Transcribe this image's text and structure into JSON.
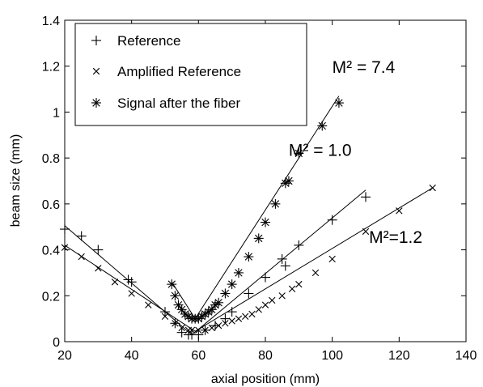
{
  "chart_data": {
    "type": "scatter",
    "title": "",
    "xlabel": "axial position (mm)",
    "ylabel": "beam size (mm)",
    "xlim": [
      20,
      140
    ],
    "ylim": [
      0,
      1.4
    ],
    "xticks": [
      20,
      40,
      60,
      80,
      100,
      120,
      140
    ],
    "yticks": [
      0,
      0.2,
      0.4,
      0.6,
      0.8,
      1,
      1.2,
      1.4
    ],
    "xtick_labels": [
      "20",
      "40",
      "60",
      "80",
      "100",
      "120",
      "140"
    ],
    "ytick_labels": [
      "0",
      "0.2",
      "0.4",
      "0.6",
      "0.8",
      "1",
      "1.2",
      "1.4"
    ],
    "grid": false,
    "legend_position": "top-left",
    "series": [
      {
        "name": "Reference",
        "marker": "plus",
        "points": [
          [
            20,
            0.49
          ],
          [
            25,
            0.46
          ],
          [
            30,
            0.4
          ],
          [
            39,
            0.27
          ],
          [
            40,
            0.26
          ],
          [
            50,
            0.13
          ],
          [
            53,
            0.08
          ],
          [
            55,
            0.04
          ],
          [
            57,
            0.03
          ],
          [
            58,
            0.03
          ],
          [
            60,
            0.03
          ],
          [
            62,
            0.05
          ],
          [
            65,
            0.07
          ],
          [
            68,
            0.1
          ],
          [
            70,
            0.13
          ],
          [
            75,
            0.21
          ],
          [
            80,
            0.28
          ],
          [
            85,
            0.36
          ],
          [
            86,
            0.33
          ],
          [
            90,
            0.42
          ],
          [
            100,
            0.53
          ],
          [
            110,
            0.63
          ]
        ],
        "fit": [
          [
            20,
            0.505
          ],
          [
            58,
            0.03
          ],
          [
            110,
            0.66
          ]
        ]
      },
      {
        "name": "Amplified Reference",
        "marker": "x",
        "points": [
          [
            20,
            0.41
          ],
          [
            25,
            0.37
          ],
          [
            30,
            0.32
          ],
          [
            35,
            0.26
          ],
          [
            40,
            0.21
          ],
          [
            45,
            0.16
          ],
          [
            50,
            0.11
          ],
          [
            53,
            0.08
          ],
          [
            55,
            0.06
          ],
          [
            57,
            0.05
          ],
          [
            58,
            0.05
          ],
          [
            60,
            0.05
          ],
          [
            62,
            0.05
          ],
          [
            64,
            0.06
          ],
          [
            66,
            0.07
          ],
          [
            68,
            0.08
          ],
          [
            70,
            0.09
          ],
          [
            72,
            0.1
          ],
          [
            74,
            0.11
          ],
          [
            76,
            0.12
          ],
          [
            78,
            0.14
          ],
          [
            80,
            0.16
          ],
          [
            82,
            0.18
          ],
          [
            85,
            0.2
          ],
          [
            88,
            0.23
          ],
          [
            90,
            0.25
          ],
          [
            95,
            0.3
          ],
          [
            100,
            0.36
          ],
          [
            110,
            0.48
          ],
          [
            120,
            0.57
          ],
          [
            130,
            0.67
          ]
        ],
        "fit": [
          [
            20,
            0.42
          ],
          [
            59,
            0.045
          ],
          [
            130,
            0.67
          ]
        ]
      },
      {
        "name": "Signal after the fiber",
        "marker": "asterisk",
        "points": [
          [
            52,
            0.25
          ],
          [
            53,
            0.2
          ],
          [
            54,
            0.16
          ],
          [
            55,
            0.14
          ],
          [
            56,
            0.12
          ],
          [
            57,
            0.11
          ],
          [
            58,
            0.1
          ],
          [
            59,
            0.1
          ],
          [
            60,
            0.1
          ],
          [
            61,
            0.11
          ],
          [
            62,
            0.12
          ],
          [
            63,
            0.13
          ],
          [
            64,
            0.14
          ],
          [
            65,
            0.16
          ],
          [
            66,
            0.17
          ],
          [
            68,
            0.21
          ],
          [
            70,
            0.25
          ],
          [
            72,
            0.3
          ],
          [
            75,
            0.37
          ],
          [
            78,
            0.45
          ],
          [
            80,
            0.52
          ],
          [
            83,
            0.6
          ],
          [
            86,
            0.69
          ],
          [
            87,
            0.7
          ],
          [
            90,
            0.82
          ],
          [
            97,
            0.94
          ],
          [
            102,
            1.04
          ]
        ],
        "fit": [
          [
            52,
            0.26
          ],
          [
            59,
            0.1
          ],
          [
            102,
            1.07
          ]
        ]
      }
    ],
    "annotations": [
      {
        "text": "M² = 7.4",
        "x": 100,
        "y": 1.17
      },
      {
        "text": "M² = 1.0",
        "x": 87,
        "y": 0.81
      },
      {
        "text": "M²=1.2",
        "x": 111,
        "y": 0.43
      }
    ]
  }
}
